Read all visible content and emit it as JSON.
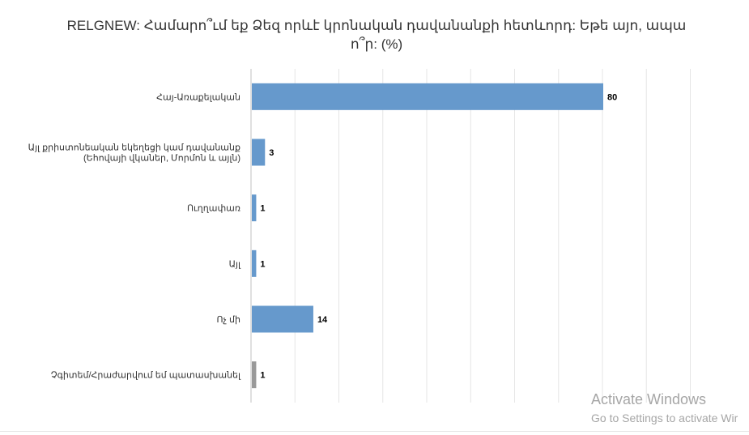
{
  "chart_data": {
    "type": "bar",
    "orientation": "horizontal",
    "title": "RELGNEW: Համարո՞ւմ եք Ձեզ որևէ կրոնական դավանանքի հետևորդ: Եթե այո, ապա ո՞ր: (%)",
    "categories": [
      "Հայ-Առաքելական",
      "Այլ քրիստոնեական եկեղեցի կամ դավանանք\n(Եհովայի վկաներ, Մորմոն և այլն)",
      "Ուղղափառ",
      "Այլ",
      "Ոչ մի",
      "Չգիտեմ/Հրաժարվում եմ պատասխանել"
    ],
    "values": [
      80,
      3,
      1,
      1,
      14,
      1
    ],
    "value_labels": [
      "80",
      "3",
      "1",
      "1",
      "14",
      "1"
    ],
    "bar_colors": [
      "#6699cc",
      "#6699cc",
      "#6699cc",
      "#6699cc",
      "#6699cc",
      "#999999"
    ],
    "xlim": [
      0,
      100
    ],
    "grid": true,
    "legend": "none"
  },
  "watermark": {
    "line1": "Activate Windows",
    "line2": "Go to Settings to activate Wir"
  }
}
